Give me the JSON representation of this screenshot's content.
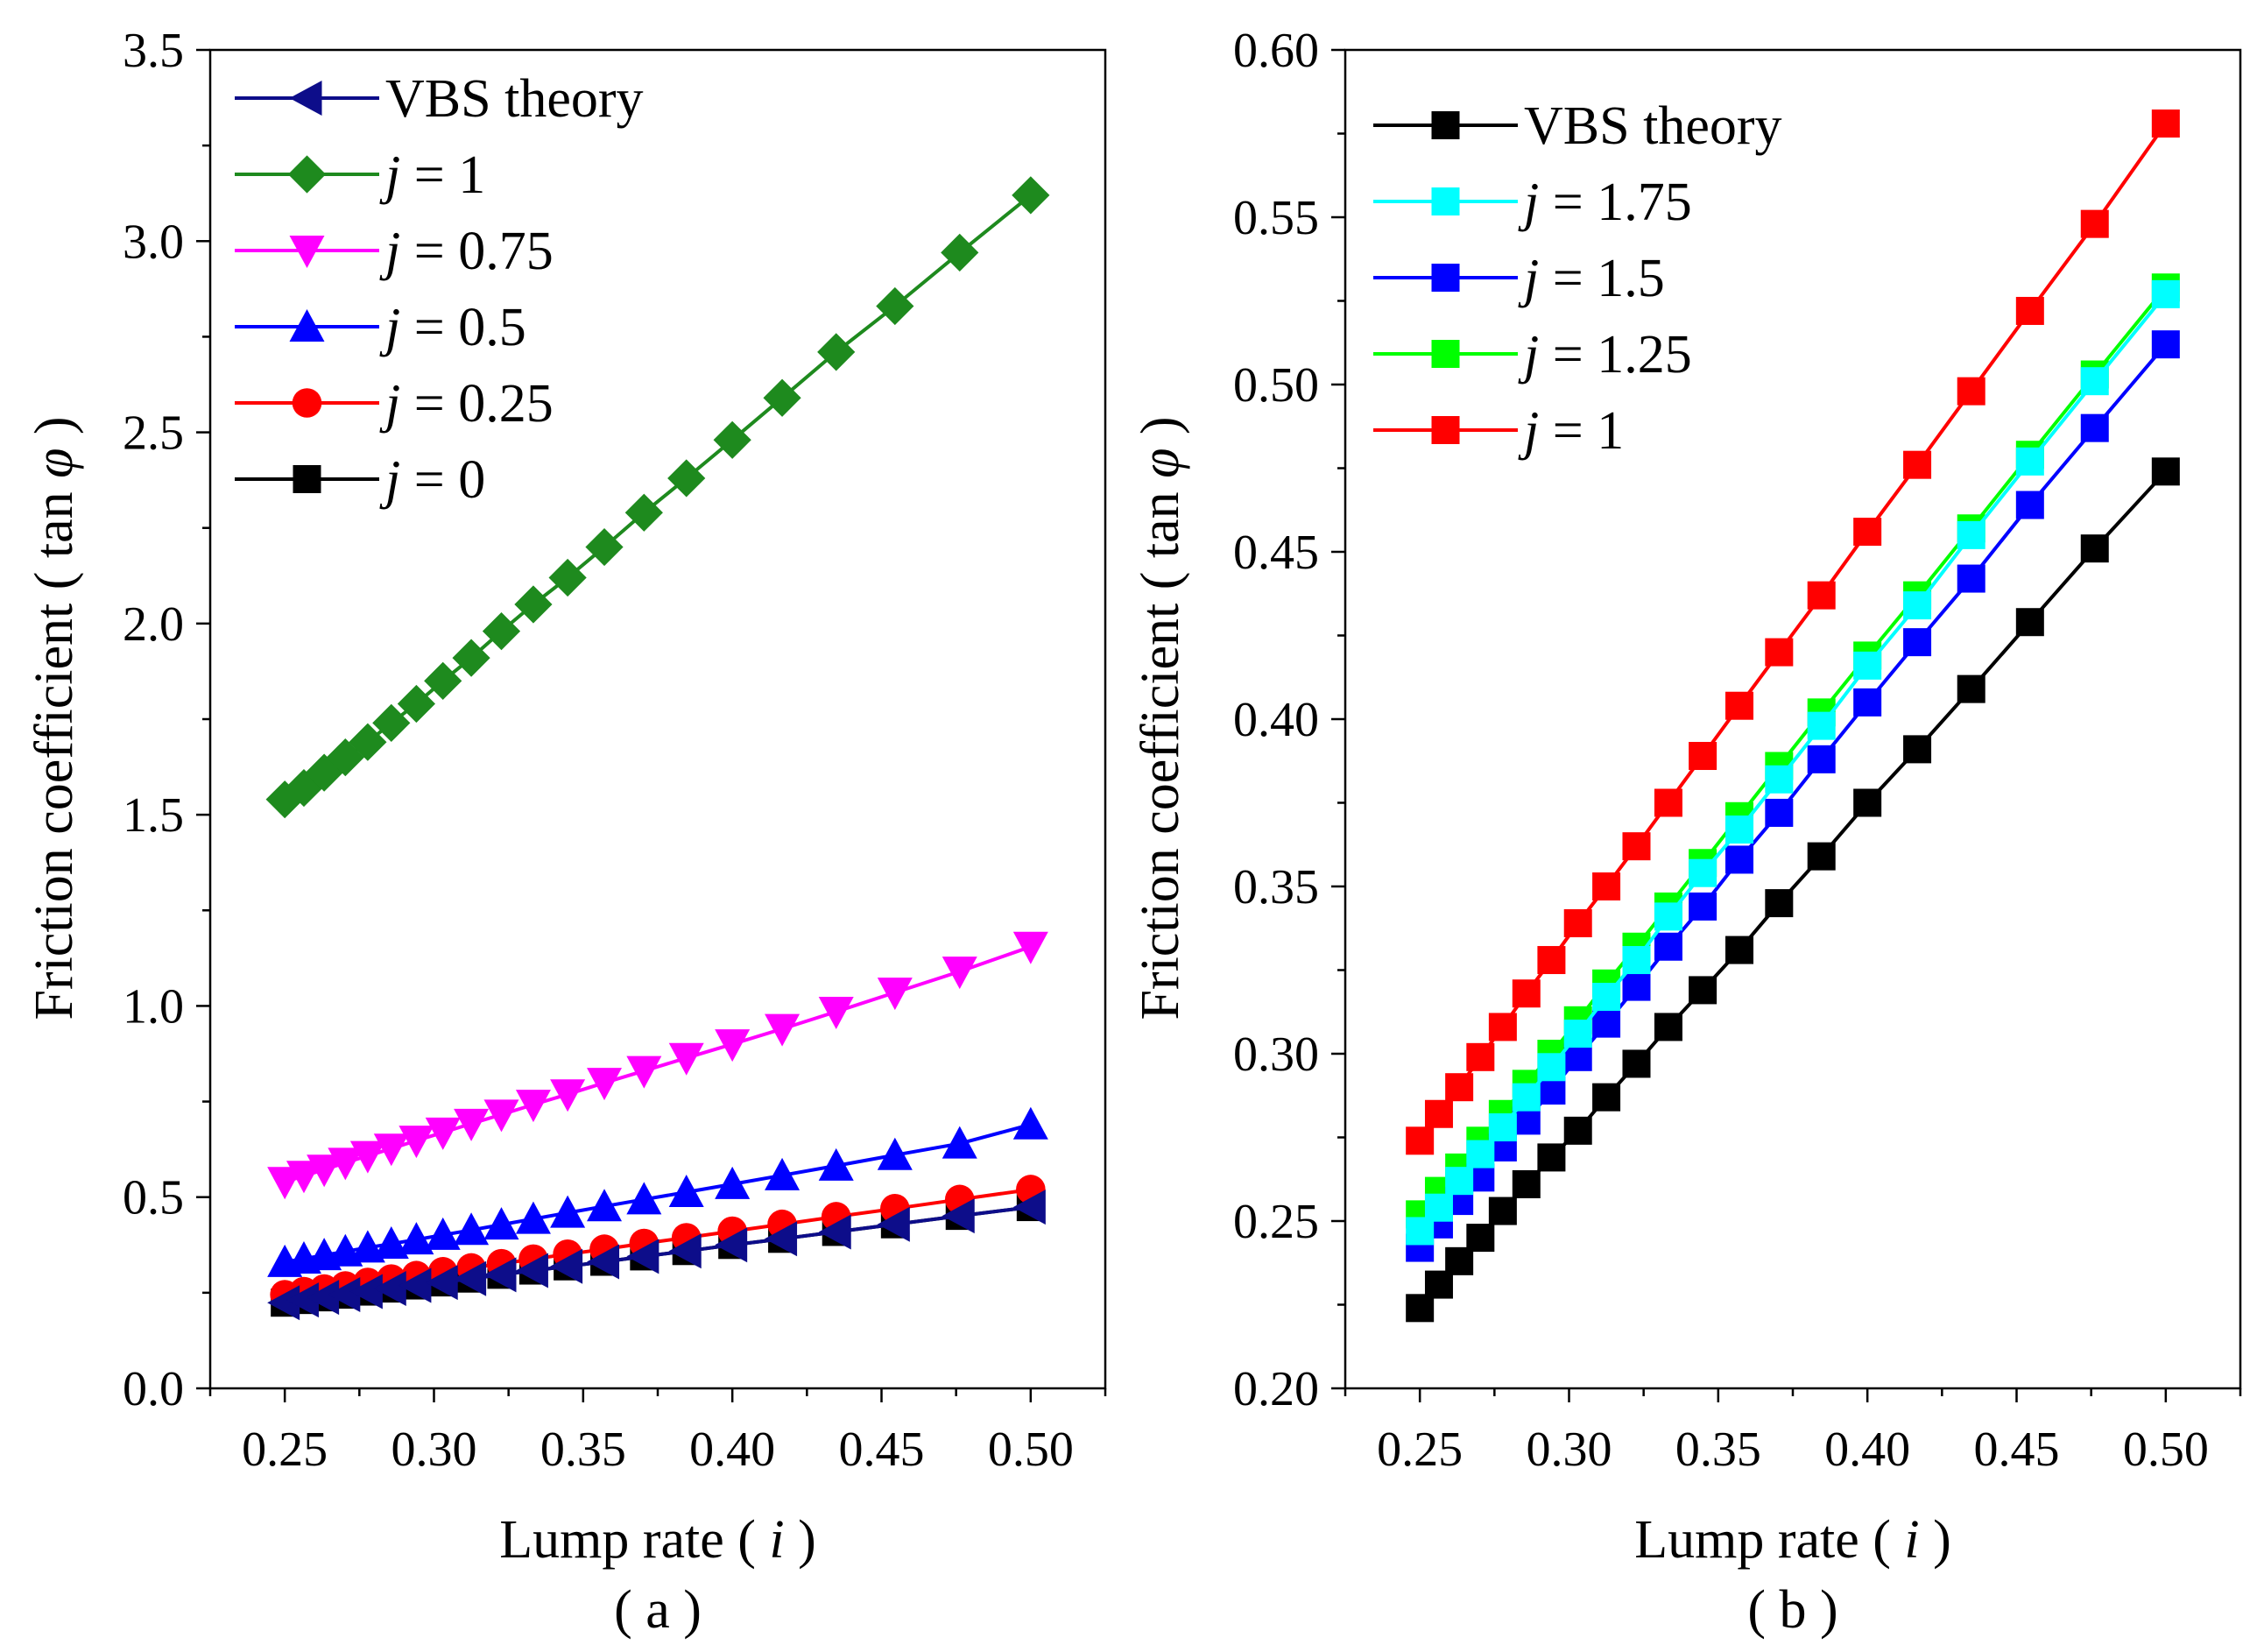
{
  "chart_data": [
    {
      "id": "a",
      "type": "line",
      "panel_label": "( a )",
      "xlabel": "Lump rate ( i )",
      "ylabel": "Friction coefficient ( tan φ )",
      "xlim": [
        0.225,
        0.525
      ],
      "ylim": [
        0.0,
        3.5
      ],
      "xticks": [
        0.25,
        0.3,
        0.35,
        0.4,
        0.45,
        0.5
      ],
      "xtick_labels": [
        "0.25",
        "0.30",
        "0.35",
        "0.40",
        "0.45",
        "0.50"
      ],
      "yticks": [
        0.0,
        0.5,
        1.0,
        1.5,
        2.0,
        2.5,
        3.0,
        3.5
      ],
      "ytick_labels": [
        "0.0",
        "0.5",
        "1.0",
        "1.5",
        "2.0",
        "2.5",
        "3.0",
        "3.5"
      ],
      "legend_position": "top-left",
      "x": [
        0.25,
        0.2564,
        0.2632,
        0.2703,
        0.2778,
        0.2857,
        0.2941,
        0.303,
        0.3125,
        0.3226,
        0.3333,
        0.3448,
        0.3571,
        0.3704,
        0.3846,
        0.4,
        0.4167,
        0.4348,
        0.4545,
        0.4762,
        0.5
      ],
      "series": [
        {
          "name": "VBS theory",
          "italic_j": false,
          "color": "#0d0d8a",
          "marker": "triangle-left",
          "values": [
            0.224,
            0.231,
            0.238,
            0.245,
            0.253,
            0.261,
            0.269,
            0.277,
            0.287,
            0.297,
            0.308,
            0.319,
            0.331,
            0.345,
            0.359,
            0.375,
            0.391,
            0.409,
            0.429,
            0.451,
            0.474
          ]
        },
        {
          "name": "= 1",
          "italic_j": true,
          "color": "#1e8a1e",
          "marker": "diamond",
          "values": [
            1.54,
            1.57,
            1.61,
            1.65,
            1.69,
            1.74,
            1.79,
            1.85,
            1.91,
            1.98,
            2.05,
            2.12,
            2.2,
            2.29,
            2.38,
            2.48,
            2.59,
            2.71,
            2.83,
            2.97,
            3.12
          ]
        },
        {
          "name": "= 0.75",
          "italic_j": true,
          "color": "#ff00ff",
          "marker": "triangle-down",
          "values": [
            0.54,
            0.556,
            0.572,
            0.59,
            0.608,
            0.627,
            0.648,
            0.669,
            0.692,
            0.716,
            0.742,
            0.769,
            0.799,
            0.83,
            0.864,
            0.9,
            0.94,
            0.985,
            1.035,
            1.09,
            1.155
          ]
        },
        {
          "name": "= 0.5",
          "italic_j": true,
          "color": "#0000ff",
          "marker": "triangle-up",
          "values": [
            0.33,
            0.339,
            0.348,
            0.358,
            0.368,
            0.378,
            0.389,
            0.401,
            0.414,
            0.428,
            0.443,
            0.459,
            0.476,
            0.494,
            0.513,
            0.534,
            0.557,
            0.582,
            0.61,
            0.64,
            0.69
          ]
        },
        {
          "name": "= 0.25",
          "italic_j": true,
          "color": "#ff0000",
          "marker": "circle",
          "values": [
            0.245,
            0.253,
            0.26,
            0.268,
            0.277,
            0.286,
            0.295,
            0.305,
            0.315,
            0.326,
            0.338,
            0.351,
            0.364,
            0.379,
            0.394,
            0.411,
            0.429,
            0.449,
            0.47,
            0.494,
            0.52
          ]
        },
        {
          "name": "= 0",
          "italic_j": true,
          "color": "#000000",
          "marker": "square",
          "values": [
            0.224,
            0.231,
            0.238,
            0.245,
            0.253,
            0.261,
            0.269,
            0.277,
            0.287,
            0.297,
            0.308,
            0.319,
            0.331,
            0.345,
            0.359,
            0.375,
            0.391,
            0.409,
            0.429,
            0.451,
            0.474
          ]
        }
      ]
    },
    {
      "id": "b",
      "type": "line",
      "panel_label": "( b )",
      "xlabel": "Lump rate ( i )",
      "ylabel": "Friction coefficient ( tan φ )",
      "xlim": [
        0.225,
        0.525
      ],
      "ylim": [
        0.2,
        0.6
      ],
      "xticks": [
        0.25,
        0.3,
        0.35,
        0.4,
        0.45,
        0.5
      ],
      "xtick_labels": [
        "0.25",
        "0.30",
        "0.35",
        "0.40",
        "0.45",
        "0.50"
      ],
      "yticks": [
        0.2,
        0.25,
        0.3,
        0.35,
        0.4,
        0.45,
        0.5,
        0.55,
        0.6
      ],
      "ytick_labels": [
        "0.20",
        "0.25",
        "0.30",
        "0.35",
        "0.40",
        "0.45",
        "0.50",
        "0.55",
        "0.60"
      ],
      "legend_position": "top-left",
      "x": [
        0.25,
        0.2564,
        0.2632,
        0.2703,
        0.2778,
        0.2857,
        0.2941,
        0.303,
        0.3125,
        0.3226,
        0.3333,
        0.3448,
        0.3571,
        0.3704,
        0.3846,
        0.4,
        0.4167,
        0.4348,
        0.4545,
        0.4762,
        0.5
      ],
      "series": [
        {
          "name": "VBS theory",
          "italic_j": false,
          "color": "#000000",
          "marker": "square",
          "values": [
            0.224,
            0.231,
            0.238,
            0.245,
            0.253,
            0.261,
            0.269,
            0.277,
            0.287,
            0.297,
            0.308,
            0.319,
            0.331,
            0.345,
            0.359,
            0.375,
            0.391,
            0.409,
            0.429,
            0.451,
            0.474
          ]
        },
        {
          "name": "= 1.75",
          "italic_j": true,
          "color": "#00ffff",
          "marker": "square",
          "values": [
            0.247,
            0.254,
            0.262,
            0.27,
            0.278,
            0.287,
            0.296,
            0.306,
            0.317,
            0.328,
            0.341,
            0.354,
            0.367,
            0.382,
            0.398,
            0.416,
            0.434,
            0.455,
            0.477,
            0.501,
            0.527
          ]
        },
        {
          "name": "= 1.5",
          "italic_j": true,
          "color": "#0000ff",
          "marker": "square",
          "values": [
            0.242,
            0.249,
            0.256,
            0.263,
            0.272,
            0.28,
            0.289,
            0.299,
            0.309,
            0.32,
            0.332,
            0.344,
            0.358,
            0.372,
            0.388,
            0.405,
            0.423,
            0.442,
            0.464,
            0.487,
            0.512
          ]
        },
        {
          "name": "= 1.25",
          "italic_j": true,
          "color": "#00ff00",
          "marker": "square",
          "values": [
            0.252,
            0.259,
            0.266,
            0.274,
            0.282,
            0.291,
            0.3,
            0.31,
            0.321,
            0.332,
            0.344,
            0.357,
            0.371,
            0.386,
            0.402,
            0.419,
            0.437,
            0.457,
            0.479,
            0.503,
            0.529
          ]
        },
        {
          "name": "= 1",
          "italic_j": true,
          "color": "#ff0000",
          "marker": "square",
          "values": [
            0.274,
            0.282,
            0.29,
            0.299,
            0.308,
            0.318,
            0.328,
            0.339,
            0.35,
            0.362,
            0.375,
            0.389,
            0.404,
            0.42,
            0.437,
            0.456,
            0.476,
            0.498,
            0.522,
            0.548,
            0.578
          ]
        }
      ]
    }
  ]
}
